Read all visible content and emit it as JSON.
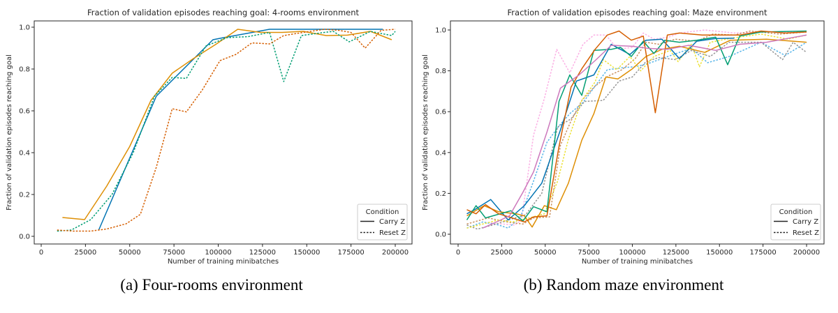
{
  "captions": [
    "(a) Four-rooms environment",
    "(b) Random maze environment"
  ],
  "chart_data": [
    {
      "type": "line",
      "title": "Fraction of validation episodes reaching goal: 4-rooms environment",
      "xlabel": "Number of training minibatches",
      "ylabel": "Fraction of validation episodes reaching goal",
      "xlim": [
        0,
        200000
      ],
      "ylim": [
        0,
        1.0
      ],
      "xticks": [
        0,
        25000,
        50000,
        75000,
        100000,
        125000,
        150000,
        175000,
        200000
      ],
      "yticks": [
        "0.0",
        "0.2",
        "0.4",
        "0.6",
        "0.8",
        "1.0"
      ],
      "grid": false,
      "legend": {
        "title": "Condition",
        "placement": "bottom-right",
        "entries": [
          {
            "label": "Carry Z",
            "style": "solid"
          },
          {
            "label": "Reset Z",
            "style": "dotted"
          }
        ]
      },
      "series": [
        {
          "condition": "Carry Z",
          "color": "#0173b2",
          "x": [
            32500,
            65000,
            97000,
            103000,
            129000,
            193000
          ],
          "y": [
            0.03,
            0.67,
            0.94,
            0.95,
            0.99,
            0.99
          ]
        },
        {
          "condition": "Carry Z",
          "color": "#de8f05",
          "x": [
            12000,
            24500,
            37000,
            50000,
            62000,
            74000,
            86000,
            99000,
            111000,
            124000,
            136000,
            148000,
            161000,
            173000,
            186000,
            198000
          ],
          "y": [
            0.09,
            0.08,
            0.24,
            0.43,
            0.65,
            0.78,
            0.85,
            0.92,
            0.99,
            0.975,
            0.975,
            0.98,
            0.96,
            0.962,
            0.98,
            0.94
          ]
        },
        {
          "condition": "Reset Z",
          "color": "#029e73",
          "x": [
            9000,
            17000,
            28000,
            40000,
            52000,
            64000,
            74000,
            82000,
            93000,
            105000,
            117000,
            129000,
            137000,
            147000,
            160000,
            165000,
            174000,
            186000,
            198000,
            200000
          ],
          "y": [
            0.025,
            0.03,
            0.08,
            0.2,
            0.4,
            0.67,
            0.76,
            0.755,
            0.91,
            0.95,
            0.955,
            0.975,
            0.74,
            0.96,
            0.975,
            0.98,
            0.93,
            0.98,
            0.96,
            0.98
          ]
        },
        {
          "condition": "Reset Z",
          "color": "#d55e00",
          "x": [
            9000,
            18000,
            28000,
            37000,
            48000,
            56000,
            65000,
            74000,
            82000,
            91000,
            101000,
            110000,
            119000,
            129000,
            137000,
            148000,
            160000,
            168000,
            175000,
            183000,
            192000,
            200000
          ],
          "y": [
            0.03,
            0.025,
            0.025,
            0.035,
            0.06,
            0.105,
            0.33,
            0.61,
            0.595,
            0.7,
            0.84,
            0.87,
            0.925,
            0.92,
            0.96,
            0.975,
            0.99,
            0.985,
            0.975,
            0.9,
            0.985,
            0.99
          ]
        }
      ]
    },
    {
      "type": "line",
      "title": "Fraction of validation episodes reaching goal: Maze environment",
      "xlabel": "Number of training minibatches",
      "ylabel": "Fraction of validation episodes reaching goal",
      "xlim": [
        0,
        200000
      ],
      "ylim": [
        0,
        1.0
      ],
      "xticks": [
        0,
        25000,
        50000,
        75000,
        100000,
        125000,
        150000,
        175000,
        200000
      ],
      "yticks": [
        "0.0",
        "0.2",
        "0.4",
        "0.6",
        "0.8",
        "1.0"
      ],
      "grid": false,
      "legend": {
        "title": "Condition",
        "placement": "bottom-right",
        "entries": [
          {
            "label": "Carry Z",
            "style": "solid"
          },
          {
            "label": "Reset Z",
            "style": "dotted"
          }
        ]
      },
      "series": [
        {
          "condition": "Reset Z",
          "color": "#fbafe4",
          "x": [
            18700,
            32600,
            36400,
            43300,
            49500,
            56600,
            64100,
            71700,
            77900,
            84800,
            91700,
            100000,
            106300,
            112400,
            120900,
            127000,
            141600,
            158500,
            177000,
            200000
          ],
          "y": [
            0.055,
            0.045,
            0.07,
            0.485,
            0.665,
            0.905,
            0.79,
            0.93,
            0.975,
            0.975,
            0.905,
            0.915,
            0.985,
            0.955,
            0.965,
            0.985,
            1.0,
            0.985,
            0.99,
            0.99
          ]
        },
        {
          "condition": "Reset Z",
          "color": "#56b4e9",
          "x": [
            5000,
            14100,
            23300,
            28700,
            35600,
            43300,
            51000,
            57900,
            64100,
            71700,
            78600,
            85600,
            94000,
            101700,
            109000,
            118600,
            127000,
            133900,
            143200,
            155500,
            173900,
            187700,
            200000
          ],
          "y": [
            0.03,
            0.06,
            0.045,
            0.03,
            0.08,
            0.26,
            0.45,
            0.53,
            0.59,
            0.645,
            0.725,
            0.805,
            0.815,
            0.82,
            0.835,
            0.865,
            0.89,
            0.91,
            0.84,
            0.87,
            0.94,
            0.875,
            0.94
          ]
        },
        {
          "condition": "Reset Z",
          "color": "#949494",
          "x": [
            5000,
            11100,
            21800,
            31000,
            38700,
            48000,
            57100,
            64800,
            72500,
            83300,
            92400,
            100000,
            107800,
            115200,
            124700,
            133900,
            144700,
            155500,
            173900,
            186200,
            192300,
            200000
          ],
          "y": [
            0.045,
            0.025,
            0.05,
            0.075,
            0.095,
            0.2,
            0.525,
            0.565,
            0.65,
            0.655,
            0.75,
            0.77,
            0.845,
            0.865,
            0.855,
            0.9,
            0.87,
            0.94,
            0.94,
            0.855,
            0.94,
            0.89
          ]
        },
        {
          "condition": "Reset Z",
          "color": "#ca9161",
          "x": [
            5000,
            17200,
            28000,
            37200,
            43300,
            52500,
            58700,
            64800,
            71000,
            78600,
            86300,
            94000,
            101700,
            107800,
            115200,
            124700,
            137000,
            146200,
            158500,
            167700,
            184600,
            200000
          ],
          "y": [
            0.05,
            0.08,
            0.06,
            0.05,
            0.08,
            0.085,
            0.435,
            0.555,
            0.655,
            0.725,
            0.775,
            0.805,
            0.86,
            0.94,
            0.93,
            0.955,
            0.945,
            0.98,
            0.975,
            0.995,
            0.98,
            0.99
          ]
        },
        {
          "condition": "Reset Z",
          "color": "#ece133",
          "x": [
            5000,
            14100,
            23300,
            31000,
            38700,
            49500,
            57100,
            63300,
            71000,
            78600,
            83300,
            91000,
            98600,
            104800,
            112400,
            121700,
            126300,
            133900,
            138500,
            144700,
            157000,
            173900,
            189200,
            200000
          ],
          "y": [
            0.03,
            0.05,
            0.07,
            0.06,
            0.075,
            0.1,
            0.26,
            0.465,
            0.655,
            0.745,
            0.855,
            0.805,
            0.87,
            0.8,
            0.87,
            0.9,
            0.845,
            0.93,
            0.82,
            0.94,
            0.96,
            0.98,
            0.955,
            0.975
          ]
        },
        {
          "condition": "Carry Z",
          "color": "#0173b2",
          "x": [
            5000,
            9500,
            18700,
            28700,
            38000,
            48000,
            58700,
            67900,
            77900,
            87900,
            98600,
            107800,
            117000,
            127000,
            137000,
            147800,
            158500
          ],
          "y": [
            0.1,
            0.12,
            0.17,
            0.07,
            0.14,
            0.25,
            0.51,
            0.75,
            0.78,
            0.93,
            0.88,
            0.95,
            0.955,
            0.86,
            0.945,
            0.958,
            0.96
          ]
        },
        {
          "condition": "Carry Z",
          "color": "#de8f05",
          "x": [
            5000,
            14900,
            23300,
            33300,
            38000,
            42500,
            49500,
            56400,
            63300,
            71000,
            77900,
            84800,
            91700,
            100000,
            107800,
            117000,
            127000,
            141600,
            156200,
            177000,
            200000
          ],
          "y": [
            0.09,
            0.14,
            0.11,
            0.1,
            0.09,
            0.035,
            0.14,
            0.12,
            0.25,
            0.46,
            0.59,
            0.77,
            0.76,
            0.81,
            0.87,
            0.905,
            0.92,
            0.89,
            0.95,
            0.955,
            0.94
          ]
        },
        {
          "condition": "Carry Z",
          "color": "#029e73",
          "x": [
            5000,
            10300,
            15700,
            30300,
            37200,
            43300,
            51000,
            57900,
            64100,
            71000,
            77900,
            87900,
            93200,
            99400,
            106300,
            112400,
            118600,
            127000,
            137000,
            147800,
            154700,
            161600,
            173900,
            200000
          ],
          "y": [
            0.07,
            0.14,
            0.08,
            0.115,
            0.065,
            0.135,
            0.11,
            0.65,
            0.78,
            0.68,
            0.9,
            0.905,
            0.915,
            0.87,
            0.945,
            0.885,
            0.95,
            0.94,
            0.95,
            0.965,
            0.83,
            0.97,
            0.99,
            0.995
          ]
        },
        {
          "condition": "Carry Z",
          "color": "#d55e00",
          "x": [
            5000,
            10300,
            15700,
            23300,
            31000,
            38000,
            43300,
            51000,
            57900,
            64800,
            71000,
            78600,
            85600,
            92400,
            99400,
            106300,
            113200,
            120100,
            127000,
            140100,
            150800,
            161600,
            173900,
            187700,
            200000
          ],
          "y": [
            0.12,
            0.1,
            0.145,
            0.1,
            0.08,
            0.06,
            0.085,
            0.09,
            0.43,
            0.72,
            0.81,
            0.905,
            0.975,
            0.995,
            0.95,
            0.97,
            0.595,
            0.975,
            0.985,
            0.975,
            0.975,
            0.975,
            0.995,
            0.985,
            0.99
          ]
        },
        {
          "condition": "Carry Z",
          "color": "#cc78bc",
          "x": [
            14100,
            23300,
            29500,
            37200,
            43300,
            51000,
            58700,
            69400,
            78600,
            87900,
            100000,
            109000,
            120100,
            132400,
            147800,
            161600,
            177000,
            200000
          ],
          "y": [
            0.03,
            0.065,
            0.09,
            0.205,
            0.305,
            0.5,
            0.715,
            0.78,
            0.85,
            0.925,
            0.92,
            0.91,
            0.905,
            0.925,
            0.9,
            0.93,
            0.94,
            0.975
          ]
        }
      ]
    }
  ]
}
